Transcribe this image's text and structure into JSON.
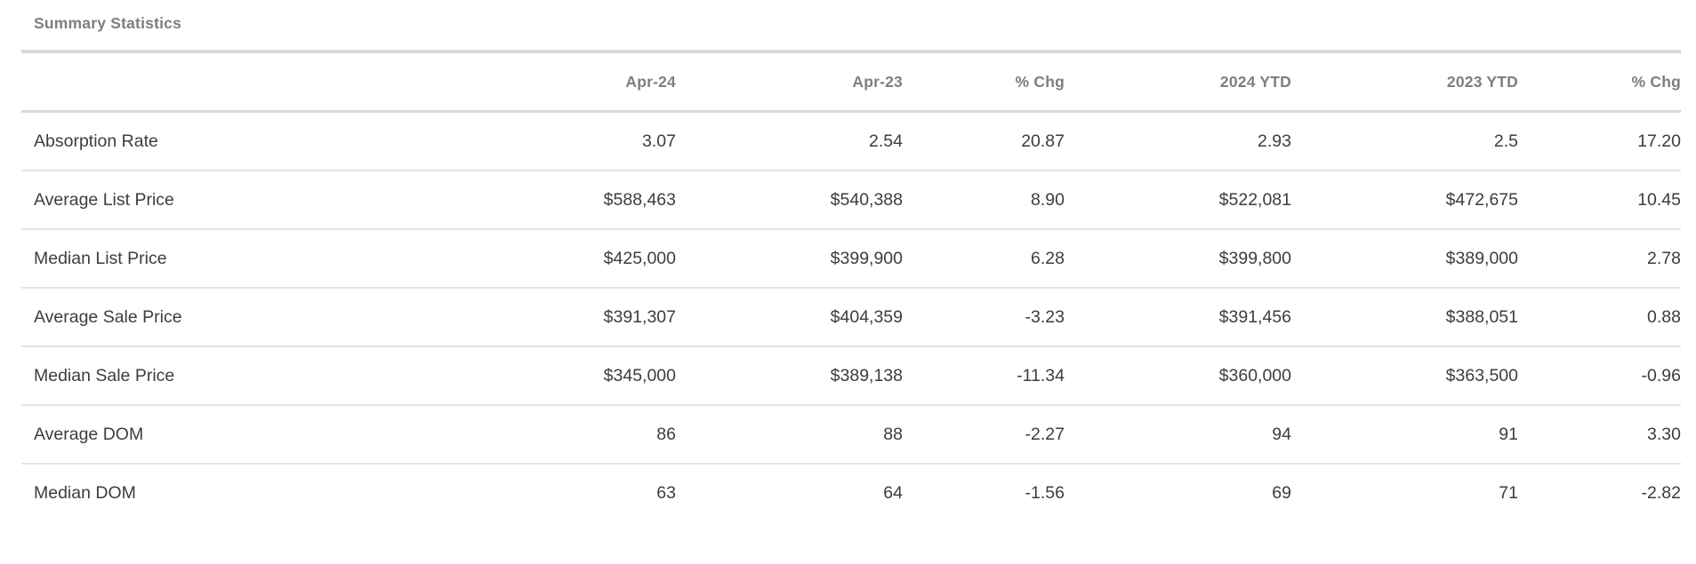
{
  "page": {
    "section_title": "Summary Statistics"
  },
  "chart_data": {
    "type": "table",
    "title": "Summary Statistics",
    "row_header": "",
    "columns": [
      "Apr-24",
      "Apr-23",
      "% Chg",
      "2024 YTD",
      "2023 YTD",
      "% Chg"
    ],
    "rows": [
      {
        "label": "Absorption Rate",
        "values": [
          "3.07",
          "2.54",
          "20.87",
          "2.93",
          "2.5",
          "17.20"
        ]
      },
      {
        "label": "Average List Price",
        "values": [
          "$588,463",
          "$540,388",
          "8.90",
          "$522,081",
          "$472,675",
          "10.45"
        ]
      },
      {
        "label": "Median List Price",
        "values": [
          "$425,000",
          "$399,900",
          "6.28",
          "$399,800",
          "$389,000",
          "2.78"
        ]
      },
      {
        "label": "Average Sale Price",
        "values": [
          "$391,307",
          "$404,359",
          "-3.23",
          "$391,456",
          "$388,051",
          "0.88"
        ]
      },
      {
        "label": "Median Sale Price",
        "values": [
          "$345,000",
          "$389,138",
          "-11.34",
          "$360,000",
          "$363,500",
          "-0.96"
        ]
      },
      {
        "label": "Average DOM",
        "values": [
          "86",
          "88",
          "-2.27",
          "94",
          "91",
          "3.30"
        ]
      },
      {
        "label": "Median DOM",
        "values": [
          "63",
          "64",
          "-1.56",
          "69",
          "71",
          "-2.82"
        ]
      }
    ]
  },
  "colors": {
    "title_text": "#7e7e7e",
    "header_text": "#7e7e7e",
    "body_text": "#3d3d3d",
    "divider_strong": "#d8d8d8",
    "divider_light": "#e4e4e4",
    "background": "#ffffff"
  }
}
